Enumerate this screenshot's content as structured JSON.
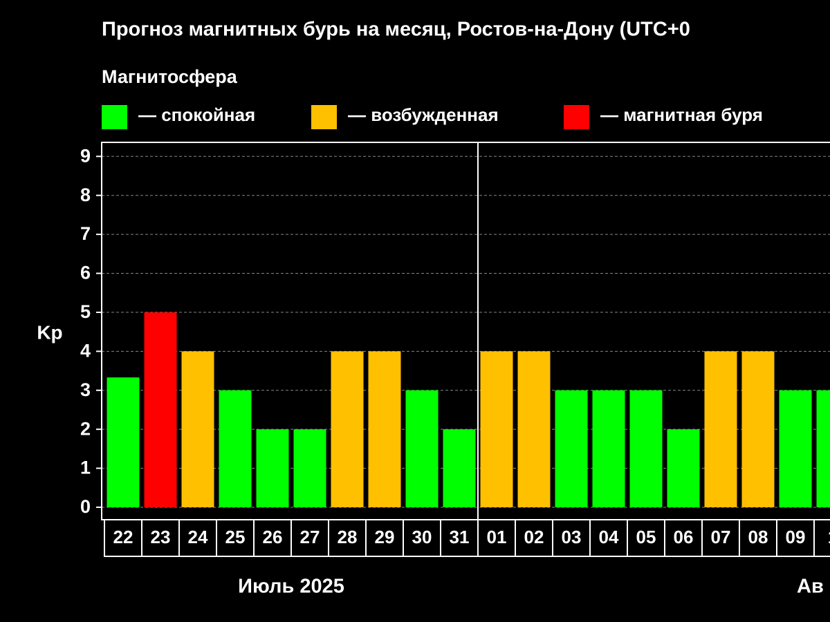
{
  "chart_data": {
    "type": "bar",
    "title": "Прогноз магнитных бурь на месяц, Ростов-на-Дону (UTC+0",
    "subtitle": "Магнитосфера",
    "legend": [
      {
        "name": "— спокойная",
        "color": "#00ff00"
      },
      {
        "name": "— возбужденная",
        "color": "#ffc000"
      },
      {
        "name": "— магнитная буря",
        "color": "#ff0000"
      }
    ],
    "y_label": "Kp",
    "categories": [
      "22",
      "23",
      "24",
      "25",
      "26",
      "27",
      "28",
      "29",
      "30",
      "31",
      "01",
      "02",
      "03",
      "04",
      "05",
      "06",
      "07",
      "08",
      "09",
      "1"
    ],
    "values": [
      3.33,
      5,
      4,
      3,
      2,
      2,
      4,
      4,
      3,
      2,
      4,
      4,
      3,
      3,
      3,
      2,
      4,
      4,
      3,
      3
    ],
    "colors": [
      "#00ff00",
      "#ff0000",
      "#ffc000",
      "#00ff00",
      "#00ff00",
      "#00ff00",
      "#ffc000",
      "#ffc000",
      "#00ff00",
      "#00ff00",
      "#ffc000",
      "#ffc000",
      "#00ff00",
      "#00ff00",
      "#00ff00",
      "#00ff00",
      "#ffc000",
      "#ffc000",
      "#00ff00",
      "#00ff00"
    ],
    "months": [
      "Июль 2025",
      "Ав"
    ],
    "ylim": [
      -0.32,
      9.36
    ],
    "yticks": [
      0,
      1,
      2,
      3,
      4,
      5,
      6,
      7,
      8,
      9
    ],
    "grid": true
  }
}
